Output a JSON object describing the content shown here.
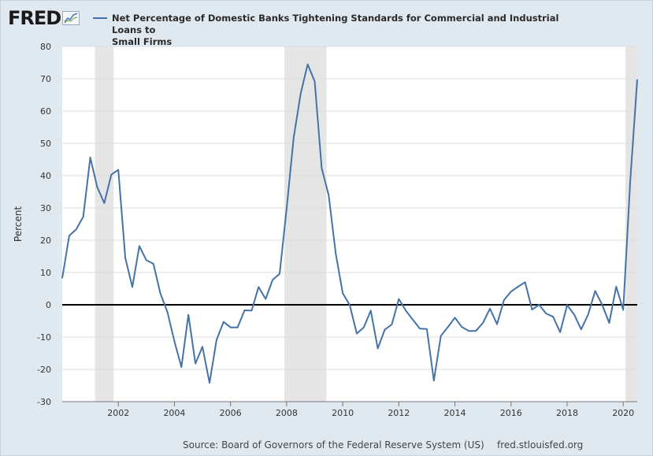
{
  "logo": {
    "text": "FRED",
    "mark": "chart-trend-icon"
  },
  "legend": {
    "color": "#4572a7"
  },
  "footer": {
    "source": "Source: Board of Governors of the Federal Reserve System (US)",
    "site": "fred.stlouisfed.org"
  },
  "chart_data": {
    "type": "line",
    "title": "Net Percentage of Domestic Banks Tightening Standards for Commercial and Industrial Loans to Small Firms",
    "title_lines": [
      "Net Percentage of Domestic Banks Tightening Standards for Commercial and Industrial Loans to",
      "Small Firms"
    ],
    "xlabel": "",
    "ylabel": "Percent",
    "xlim": [
      2000.0,
      2020.5
    ],
    "ylim": [
      -30,
      80
    ],
    "yticks": [
      -30,
      -20,
      -10,
      0,
      10,
      20,
      30,
      40,
      50,
      60,
      70,
      80
    ],
    "xticks": [
      2002,
      2004,
      2006,
      2008,
      2010,
      2012,
      2014,
      2016,
      2018,
      2020
    ],
    "zero_line": true,
    "legend": "top-left",
    "recessions": [
      [
        2001.17,
        2001.83
      ],
      [
        2007.92,
        2009.42
      ],
      [
        2020.08,
        2020.5
      ]
    ],
    "series": [
      {
        "name": "Net Percentage of Domestic Banks Tightening Standards for Commercial and Industrial Loans to Small Firms",
        "color": "#4572a7",
        "x": [
          2000.0,
          2000.25,
          2000.5,
          2000.75,
          2001.0,
          2001.25,
          2001.5,
          2001.75,
          2002.0,
          2002.25,
          2002.5,
          2002.75,
          2003.0,
          2003.25,
          2003.5,
          2003.75,
          2004.0,
          2004.25,
          2004.5,
          2004.75,
          2005.0,
          2005.25,
          2005.5,
          2005.75,
          2006.0,
          2006.25,
          2006.5,
          2006.75,
          2007.0,
          2007.25,
          2007.5,
          2007.75,
          2008.0,
          2008.25,
          2008.5,
          2008.75,
          2009.0,
          2009.25,
          2009.5,
          2009.75,
          2010.0,
          2010.25,
          2010.5,
          2010.75,
          2011.0,
          2011.25,
          2011.5,
          2011.75,
          2012.0,
          2012.25,
          2012.5,
          2012.75,
          2013.0,
          2013.25,
          2013.5,
          2013.75,
          2014.0,
          2014.25,
          2014.5,
          2014.75,
          2015.0,
          2015.25,
          2015.5,
          2015.75,
          2016.0,
          2016.25,
          2016.5,
          2016.75,
          2017.0,
          2017.25,
          2017.5,
          2017.75,
          2018.0,
          2018.25,
          2018.5,
          2018.75,
          2019.0,
          2019.25,
          2019.5,
          2019.75,
          2020.0,
          2020.25,
          2020.5
        ],
        "values": [
          8.2,
          21.4,
          23.4,
          27.3,
          45.6,
          36.4,
          31.5,
          40.3,
          41.8,
          14.5,
          5.5,
          18.2,
          13.8,
          12.7,
          3.5,
          -2.2,
          -11.3,
          -19.3,
          -3.1,
          -18.2,
          -13.0,
          -24.2,
          -10.9,
          -5.3,
          -7.0,
          -7.0,
          -1.7,
          -1.8,
          5.5,
          1.8,
          7.7,
          9.6,
          29.8,
          51.7,
          65.4,
          74.5,
          69.2,
          42.3,
          33.9,
          15.9,
          3.6,
          -0.1,
          -8.9,
          -7.0,
          -1.8,
          -13.5,
          -7.7,
          -6.1,
          1.8,
          -1.8,
          -4.6,
          -7.4,
          -7.5,
          -23.5,
          -9.6,
          -6.9,
          -4.0,
          -6.9,
          -8.1,
          -8.1,
          -5.6,
          -1.2,
          -6.0,
          1.5,
          4.1,
          5.6,
          7.0,
          -1.5,
          0.0,
          -2.7,
          -3.7,
          -8.5,
          -0.1,
          -3.0,
          -7.6,
          -3.0,
          4.3,
          0.0,
          -5.6,
          5.6,
          -1.6,
          38.3,
          69.8
        ]
      }
    ]
  }
}
